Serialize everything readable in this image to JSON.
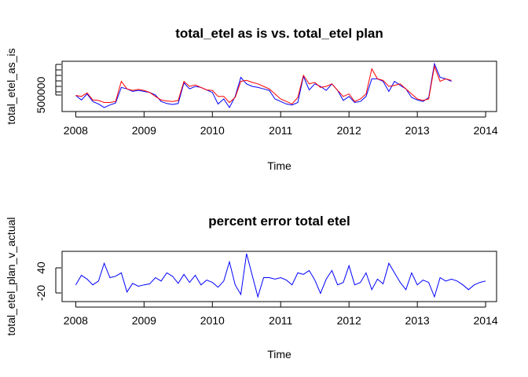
{
  "chart_data": [
    {
      "type": "line",
      "title": "total_etel as is vs. total_etel plan",
      "xlabel": "Time",
      "ylabel": "total_etel_as_is",
      "x_ticks": [
        "2008",
        "2009",
        "2010",
        "2011",
        "2012",
        "2013",
        "2014"
      ],
      "y_ticks": [
        "500000"
      ],
      "x_start": 2008.0,
      "x_step": 0.08333,
      "xlim": [
        2007.8,
        2014.16
      ],
      "ylim": [
        0,
        100
      ],
      "series": [
        {
          "color": "#0000ff",
          "values": [
            32,
            23,
            35,
            20,
            15,
            8,
            13,
            17,
            48,
            45,
            40,
            42,
            40,
            38,
            33,
            20,
            16,
            14,
            16,
            57,
            45,
            50,
            48,
            43,
            38,
            15,
            25,
            8,
            30,
            68,
            55,
            50,
            48,
            45,
            42,
            25,
            20,
            15,
            13,
            18,
            70,
            43,
            55,
            50,
            42,
            55,
            42,
            22,
            30,
            18,
            20,
            30,
            65,
            65,
            60,
            40,
            60,
            52,
            45,
            28,
            23,
            20,
            28,
            95,
            68,
            65,
            60
          ]
        },
        {
          "color": "#ff0000",
          "values": [
            32,
            30,
            37,
            23,
            22,
            18,
            18,
            20,
            60,
            45,
            42,
            44,
            42,
            38,
            30,
            23,
            21,
            20,
            22,
            60,
            50,
            53,
            48,
            43,
            42,
            30,
            30,
            18,
            28,
            60,
            62,
            58,
            55,
            50,
            45,
            35,
            25,
            20,
            15,
            28,
            72,
            55,
            58,
            48,
            50,
            55,
            42,
            30,
            35,
            20,
            25,
            35,
            85,
            65,
            62,
            50,
            52,
            55,
            45,
            35,
            25,
            22,
            25,
            90,
            60,
            65,
            62
          ]
        }
      ]
    },
    {
      "type": "line",
      "title": "percent error total etel",
      "xlabel": "Time",
      "ylabel": "total_etel_plan_v_actual",
      "x_ticks": [
        "2008",
        "2009",
        "2010",
        "2011",
        "2012",
        "2013",
        "2014"
      ],
      "y_ticks": [
        "-20",
        "40"
      ],
      "x_start": 2008.0,
      "x_step": 0.08333,
      "xlim": [
        2007.8,
        2014.16
      ],
      "ylim": [
        -35,
        70
      ],
      "series": [
        {
          "color": "#0000ff",
          "values": [
            0,
            20,
            12,
            0,
            8,
            45,
            15,
            18,
            25,
            -15,
            3,
            -3,
            0,
            2,
            15,
            8,
            25,
            18,
            3,
            22,
            5,
            20,
            0,
            10,
            5,
            -5,
            8,
            48,
            0,
            -20,
            65,
            20,
            -25,
            15,
            15,
            12,
            15,
            10,
            0,
            25,
            22,
            30,
            10,
            -18,
            12,
            30,
            0,
            5,
            40,
            0,
            5,
            25,
            -10,
            12,
            2,
            45,
            25,
            5,
            -10,
            25,
            0,
            10,
            5,
            -25,
            15,
            8,
            12,
            8,
            0,
            -10,
            0,
            5,
            8
          ]
        }
      ]
    }
  ]
}
